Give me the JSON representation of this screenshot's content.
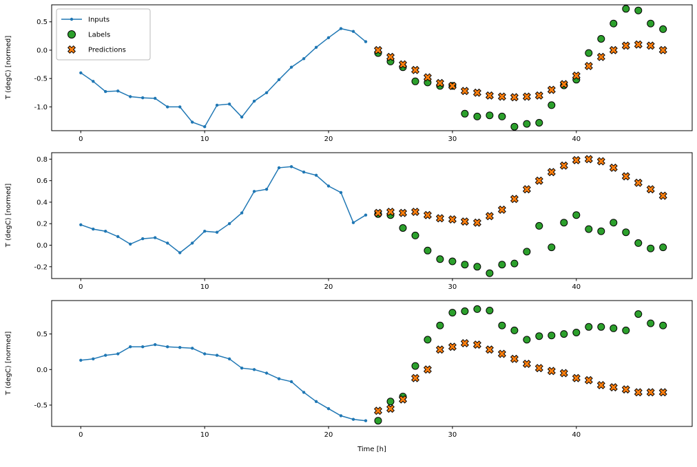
{
  "figure": {
    "xlabel": "Time [h]",
    "ylabel": "T (degC) [normed]",
    "legend": {
      "position": "upper-left-subplot-1",
      "items": [
        {
          "label": "Inputs",
          "type": "line",
          "color": "#1f77b4"
        },
        {
          "label": "Labels",
          "type": "circle",
          "color": "#2ca02c",
          "edge": "#000000"
        },
        {
          "label": "Predictions",
          "type": "x",
          "color": "#ff7f0e",
          "edge": "#000000"
        }
      ]
    }
  },
  "chart_data": [
    {
      "type": "line",
      "subplot": 1,
      "ylabel": "T (degC) [normed]",
      "xlim": [
        -2.35,
        49.35
      ],
      "ylim": [
        -1.42,
        0.8
      ],
      "xticks": [
        0,
        10,
        20,
        30,
        40
      ],
      "xtick_labels": [
        "0",
        "10",
        "20",
        "30",
        "40"
      ],
      "yticks": [
        0.5,
        0.0,
        -0.5,
        -1.0
      ],
      "ytick_labels": [
        "0.5",
        "0.0",
        "-0.5",
        "-1.0"
      ],
      "grid": false,
      "legend": true,
      "series": [
        {
          "name": "Inputs",
          "type": "line-marker",
          "color": "#1f77b4",
          "x": [
            0,
            1,
            2,
            3,
            4,
            5,
            6,
            7,
            8,
            9,
            10,
            11,
            12,
            13,
            14,
            15,
            16,
            17,
            18,
            19,
            20,
            21,
            22,
            23
          ],
          "y": [
            -0.4,
            -0.55,
            -0.73,
            -0.72,
            -0.82,
            -0.84,
            -0.85,
            -1.0,
            -1.0,
            -1.27,
            -1.35,
            -0.97,
            -0.95,
            -1.18,
            -0.9,
            -0.75,
            -0.52,
            -0.3,
            -0.15,
            0.05,
            0.22,
            0.38,
            0.33,
            0.15
          ]
        },
        {
          "name": "Labels",
          "type": "scatter-circle",
          "color": "#2ca02c",
          "edge": "#000000",
          "x": [
            24,
            25,
            26,
            27,
            28,
            29,
            30,
            31,
            32,
            33,
            34,
            35,
            36,
            37,
            38,
            39,
            40,
            41,
            42,
            43,
            44,
            45,
            46,
            47
          ],
          "y": [
            -0.05,
            -0.2,
            -0.3,
            -0.55,
            -0.57,
            -0.63,
            -0.63,
            -1.12,
            -1.17,
            -1.15,
            -1.17,
            -1.35,
            -1.3,
            -1.28,
            -0.97,
            -0.62,
            -0.52,
            -0.05,
            0.2,
            0.47,
            0.73,
            0.7,
            0.47,
            0.37
          ]
        },
        {
          "name": "Predictions",
          "type": "scatter-x",
          "color": "#ff7f0e",
          "edge": "#000000",
          "x": [
            24,
            25,
            26,
            27,
            28,
            29,
            30,
            31,
            32,
            33,
            34,
            35,
            36,
            37,
            38,
            39,
            40,
            41,
            42,
            43,
            44,
            45,
            46,
            47
          ],
          "y": [
            0.0,
            -0.12,
            -0.25,
            -0.35,
            -0.48,
            -0.58,
            -0.63,
            -0.72,
            -0.75,
            -0.8,
            -0.82,
            -0.83,
            -0.82,
            -0.8,
            -0.7,
            -0.6,
            -0.45,
            -0.28,
            -0.12,
            0.0,
            0.08,
            0.1,
            0.08,
            0.0
          ]
        }
      ]
    },
    {
      "type": "line",
      "subplot": 2,
      "ylabel": "T (degC) [normed]",
      "xlim": [
        -2.35,
        49.35
      ],
      "ylim": [
        -0.31,
        0.86
      ],
      "xticks": [
        0,
        10,
        20,
        30,
        40
      ],
      "xtick_labels": [
        "0",
        "10",
        "20",
        "30",
        "40"
      ],
      "yticks": [
        0.8,
        0.6,
        0.4,
        0.2,
        0.0,
        -0.2
      ],
      "ytick_labels": [
        "0.8",
        "0.6",
        "0.4",
        "0.2",
        "0.0",
        "-0.2"
      ],
      "grid": false,
      "legend": false,
      "series": [
        {
          "name": "Inputs",
          "type": "line-marker",
          "color": "#1f77b4",
          "x": [
            0,
            1,
            2,
            3,
            4,
            5,
            6,
            7,
            8,
            9,
            10,
            11,
            12,
            13,
            14,
            15,
            16,
            17,
            18,
            19,
            20,
            21,
            22,
            23
          ],
          "y": [
            0.19,
            0.15,
            0.13,
            0.08,
            0.01,
            0.06,
            0.07,
            0.02,
            -0.07,
            0.02,
            0.13,
            0.12,
            0.2,
            0.3,
            0.5,
            0.52,
            0.72,
            0.73,
            0.68,
            0.65,
            0.55,
            0.49,
            0.21,
            0.28
          ]
        },
        {
          "name": "Labels",
          "type": "scatter-circle",
          "color": "#2ca02c",
          "edge": "#000000",
          "x": [
            24,
            25,
            26,
            27,
            28,
            29,
            30,
            31,
            32,
            33,
            34,
            35,
            36,
            37,
            38,
            39,
            40,
            41,
            42,
            43,
            44,
            45,
            46,
            47
          ],
          "y": [
            0.29,
            0.28,
            0.16,
            0.09,
            -0.05,
            -0.13,
            -0.15,
            -0.18,
            -0.2,
            -0.26,
            -0.18,
            -0.17,
            -0.06,
            0.18,
            -0.02,
            0.21,
            0.28,
            0.15,
            0.13,
            0.21,
            0.12,
            0.02,
            -0.03,
            -0.02
          ]
        },
        {
          "name": "Predictions",
          "type": "scatter-x",
          "color": "#ff7f0e",
          "edge": "#000000",
          "x": [
            24,
            25,
            26,
            27,
            28,
            29,
            30,
            31,
            32,
            33,
            34,
            35,
            36,
            37,
            38,
            39,
            40,
            41,
            42,
            43,
            44,
            45,
            46,
            47
          ],
          "y": [
            0.3,
            0.31,
            0.3,
            0.31,
            0.28,
            0.25,
            0.24,
            0.22,
            0.21,
            0.27,
            0.33,
            0.43,
            0.52,
            0.6,
            0.68,
            0.74,
            0.79,
            0.8,
            0.78,
            0.72,
            0.64,
            0.58,
            0.52,
            0.46
          ]
        }
      ]
    },
    {
      "type": "line",
      "subplot": 3,
      "ylabel": "T (degC) [normed]",
      "xlabel": "Time [h]",
      "xlim": [
        -2.35,
        49.35
      ],
      "ylim": [
        -0.8,
        0.97
      ],
      "xticks": [
        0,
        10,
        20,
        30,
        40
      ],
      "xtick_labels": [
        "0",
        "10",
        "20",
        "30",
        "40"
      ],
      "yticks": [
        0.5,
        0.0,
        -0.5
      ],
      "ytick_labels": [
        "0.5",
        "0.0",
        "-0.5"
      ],
      "grid": false,
      "legend": false,
      "series": [
        {
          "name": "Inputs",
          "type": "line-marker",
          "color": "#1f77b4",
          "x": [
            0,
            1,
            2,
            3,
            4,
            5,
            6,
            7,
            8,
            9,
            10,
            11,
            12,
            13,
            14,
            15,
            16,
            17,
            18,
            19,
            20,
            21,
            22,
            23
          ],
          "y": [
            0.13,
            0.15,
            0.2,
            0.22,
            0.32,
            0.32,
            0.35,
            0.32,
            0.31,
            0.3,
            0.22,
            0.2,
            0.15,
            0.02,
            0.0,
            -0.05,
            -0.13,
            -0.17,
            -0.32,
            -0.45,
            -0.55,
            -0.65,
            -0.7,
            -0.72
          ]
        },
        {
          "name": "Labels",
          "type": "scatter-circle",
          "color": "#2ca02c",
          "edge": "#000000",
          "x": [
            24,
            25,
            26,
            27,
            28,
            29,
            30,
            31,
            32,
            33,
            34,
            35,
            36,
            37,
            38,
            39,
            40,
            41,
            42,
            43,
            44,
            45,
            46,
            47
          ],
          "y": [
            -0.72,
            -0.45,
            -0.38,
            0.05,
            0.42,
            0.62,
            0.8,
            0.82,
            0.85,
            0.83,
            0.62,
            0.55,
            0.42,
            0.47,
            0.48,
            0.5,
            0.52,
            0.6,
            0.6,
            0.58,
            0.55,
            0.78,
            0.65,
            0.62
          ]
        },
        {
          "name": "Predictions",
          "type": "scatter-x",
          "color": "#ff7f0e",
          "edge": "#000000",
          "x": [
            24,
            25,
            26,
            27,
            28,
            29,
            30,
            31,
            32,
            33,
            34,
            35,
            36,
            37,
            38,
            39,
            40,
            41,
            42,
            43,
            44,
            45,
            46,
            47
          ],
          "y": [
            -0.58,
            -0.55,
            -0.42,
            -0.12,
            0.0,
            0.28,
            0.32,
            0.37,
            0.35,
            0.28,
            0.22,
            0.15,
            0.08,
            0.02,
            -0.02,
            -0.05,
            -0.12,
            -0.15,
            -0.22,
            -0.25,
            -0.28,
            -0.32,
            -0.32,
            -0.32
          ]
        }
      ]
    }
  ]
}
